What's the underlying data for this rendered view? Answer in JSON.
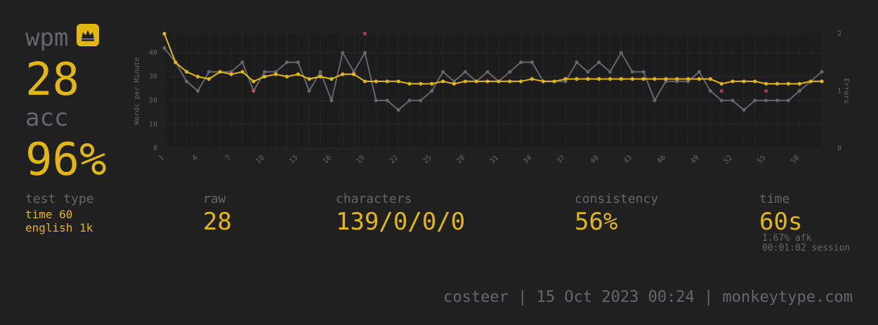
{
  "summary": {
    "wpm_label": "wpm",
    "wpm_value": "28",
    "acc_label": "acc",
    "acc_value": "96%"
  },
  "stats": {
    "test_type": {
      "label": "test type",
      "line1": "time 60",
      "line2": "english 1k"
    },
    "raw": {
      "label": "raw",
      "value": "28"
    },
    "characters": {
      "label": "characters",
      "value": "139/0/0/0"
    },
    "consistency": {
      "label": "consistency",
      "value": "56%"
    },
    "time": {
      "label": "time",
      "value": "60s",
      "afk": "1.67% afk",
      "session": "00:01:02 session"
    }
  },
  "footer": "costeer | 15 Oct 2023 00:24 | monkeytype.com",
  "colors": {
    "background": "#202021",
    "accent": "#e2b714",
    "sub": "#646669",
    "error": "#ca4754"
  },
  "icons": {
    "crown": "crown-icon"
  },
  "chart_data": {
    "type": "line",
    "x": [
      1,
      2,
      3,
      4,
      5,
      6,
      7,
      8,
      9,
      10,
      11,
      12,
      13,
      14,
      15,
      16,
      17,
      18,
      19,
      20,
      21,
      22,
      23,
      24,
      25,
      26,
      27,
      28,
      29,
      30,
      31,
      32,
      33,
      34,
      35,
      36,
      37,
      38,
      39,
      40,
      41,
      42,
      43,
      44,
      45,
      46,
      47,
      48,
      49,
      50,
      51,
      52,
      53,
      54,
      55,
      56,
      57,
      58,
      59,
      60
    ],
    "x_tick_labels": [
      "1",
      "4",
      "7",
      "10",
      "13",
      "16",
      "19",
      "22",
      "25",
      "28",
      "31",
      "34",
      "37",
      "40",
      "43",
      "46",
      "49",
      "52",
      "55",
      "58"
    ],
    "ylabel": "Words per Minute",
    "ylim": [
      0,
      48
    ],
    "y_ticks": [
      0,
      10,
      20,
      30,
      40
    ],
    "y2label": "Errors",
    "y2lim": [
      0,
      2
    ],
    "y2_ticks": [
      0,
      1,
      2
    ],
    "grid": true,
    "series": [
      {
        "kind": "raw",
        "color": "#646669",
        "values": [
          42,
          36,
          28,
          24,
          32,
          32,
          32,
          36,
          24,
          32,
          32,
          36,
          36,
          24,
          32,
          20,
          40,
          32,
          40,
          20,
          20,
          16,
          20,
          20,
          24,
          32,
          28,
          32,
          28,
          32,
          28,
          32,
          36,
          36,
          28,
          28,
          28,
          36,
          32,
          36,
          32,
          40,
          32,
          32,
          20,
          28,
          28,
          28,
          32,
          24,
          20,
          20,
          16,
          20,
          20,
          20,
          20,
          24,
          28,
          32
        ]
      },
      {
        "kind": "wpm",
        "color": "#e2b714",
        "values": [
          48,
          36,
          32,
          30,
          29,
          32,
          31,
          32,
          28,
          30,
          31,
          30,
          31,
          29,
          30,
          29,
          31,
          31,
          28,
          28,
          28,
          28,
          27,
          27,
          27,
          28,
          27,
          28,
          28,
          28,
          28,
          28,
          28,
          29,
          28,
          28,
          29,
          29,
          29,
          29,
          29,
          29,
          29,
          29,
          29,
          29,
          29,
          29,
          29,
          29,
          27,
          28,
          28,
          28,
          27,
          27,
          27,
          27,
          28,
          28
        ]
      },
      {
        "kind": "errors",
        "color": "#ca4754",
        "points": [
          [
            9,
            1
          ],
          [
            19,
            2
          ],
          [
            51,
            1
          ],
          [
            55,
            1
          ]
        ]
      }
    ]
  }
}
